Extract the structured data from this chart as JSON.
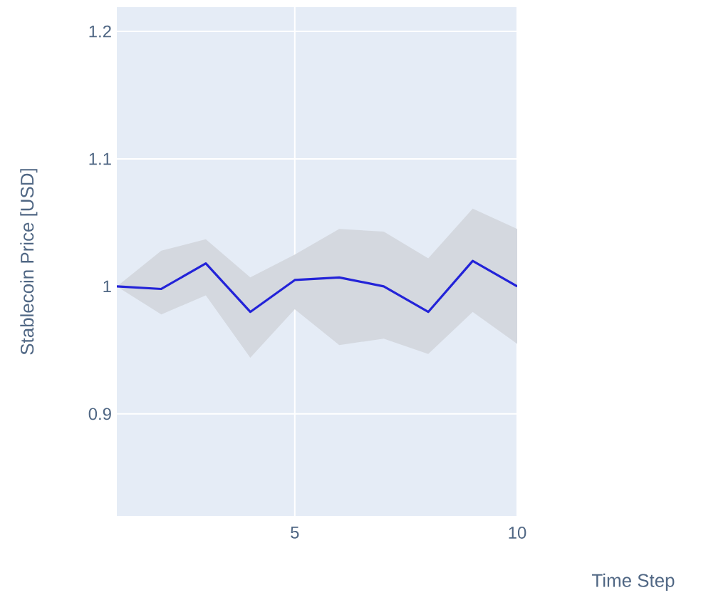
{
  "chart_data": {
    "type": "line",
    "xlabel": "Time Step",
    "ylabel": "Stablecoin Price [USD]",
    "x": [
      1,
      2,
      3,
      4,
      5,
      6,
      7,
      8,
      9,
      10
    ],
    "series": [
      {
        "color": "#2323d8",
        "values": [
          1.0,
          0.998,
          1.018,
          0.98,
          1.005,
          1.007,
          1.0,
          0.98,
          1.02,
          1.0
        ],
        "lower": [
          1.0,
          0.978,
          0.993,
          0.944,
          0.982,
          0.954,
          0.959,
          0.947,
          0.98,
          0.955
        ],
        "upper": [
          1.0,
          1.028,
          1.037,
          1.007,
          1.025,
          1.045,
          1.043,
          1.022,
          1.061,
          1.045
        ]
      }
    ],
    "xlim": [
      1,
      10
    ],
    "ylim": [
      0.82,
      1.219
    ],
    "xticks": [
      {
        "value": 5,
        "label": "5"
      },
      {
        "value": 10,
        "label": "10"
      }
    ],
    "yticks": [
      {
        "value": 0.9,
        "label": "0.9"
      },
      {
        "value": 1,
        "label": "1"
      },
      {
        "value": 1.1,
        "label": "1.1"
      },
      {
        "value": 1.2,
        "label": "1.2"
      }
    ],
    "grid": true
  }
}
